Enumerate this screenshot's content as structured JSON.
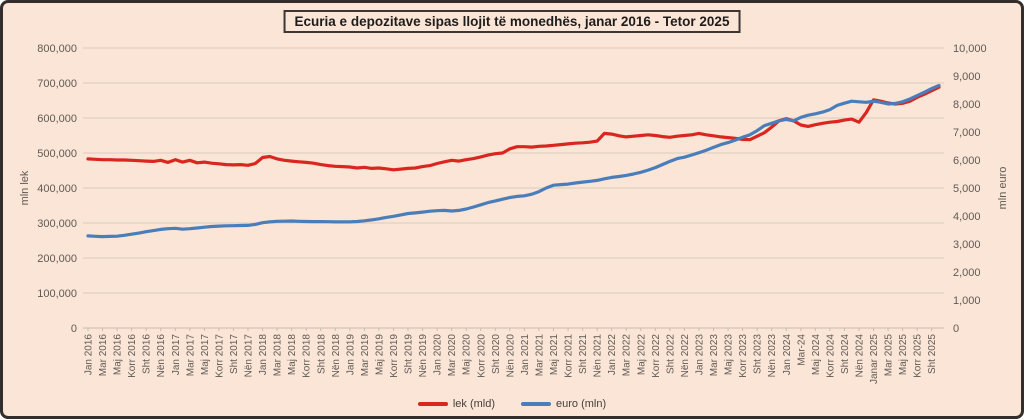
{
  "title": "Ecuria e depozitave sipas llojit të monedhës, janar 2016 - Tetor 2025",
  "left_axis": {
    "title": "mln lek",
    "tick_labels": [
      "0",
      "100,000",
      "200,000",
      "300,000",
      "400,000",
      "500,000",
      "600,000",
      "700,000",
      "800,000"
    ]
  },
  "right_axis": {
    "title": "mln euro",
    "tick_labels": [
      "0",
      "1,000",
      "2,000",
      "3,000",
      "4,000",
      "5,000",
      "6,000",
      "7,000",
      "8,000",
      "9,000",
      "10,000"
    ]
  },
  "legend": {
    "items": [
      {
        "label": "lek (mld)",
        "color": "#d9261f"
      },
      {
        "label": "euro (mln)",
        "color": "#4a7ebb"
      }
    ]
  },
  "colors": {
    "background": "#fbe5d6",
    "frame_border": "#332e2c",
    "gridline": "#d8ccc0",
    "axis_line": "#c9bcb0",
    "axis_text": "#5f5a55",
    "lek_line": "#d9261f",
    "euro_line": "#4a7ebb"
  },
  "chart_data": {
    "type": "line",
    "title": "Ecuria e depozitave sipas llojit të monedhës, janar 2016 - Tetor 2025",
    "x_tick_labels": [
      "Jan 2016",
      "Mar 2016",
      "Maj 2016",
      "Korr 2016",
      "Sht 2016",
      "Nën 2016",
      "Jan 2017",
      "Mar 2017",
      "Maj 2017",
      "Korr 2017",
      "Sht 2017",
      "Nën 2017",
      "Jan 2018",
      "Mar 2018",
      "Maj 2018",
      "Korr 2018",
      "Sht 2018",
      "Nën 2018",
      "Jan 2019",
      "Mar 2019",
      "Maj 2019",
      "Korr 2019",
      "Sht 2019",
      "Nën 2019",
      "Jan 2020",
      "Mar 2020",
      "Maj 2020",
      "Korr 2020",
      "Sht 2020",
      "Nën 2020",
      "Jan 2021",
      "Mar 2021",
      "Maj 2021",
      "Korr 2021",
      "Sht 2021",
      "Nën 2021",
      "Jan 2022",
      "Mar 2022",
      "Maj 2022",
      "Korr 2022",
      "Sht 2022",
      "Nën 2022",
      "Jan 2023",
      "Mar 2023",
      "Maj 2023",
      "Korr 2023",
      "Sht 2023",
      "Nën 2023",
      "Jan 2024",
      "Mar-24",
      "Maj 2024",
      "Korr 2024",
      "Sht 2024",
      "Nën 2024",
      "Janar 2025",
      "Mar 2025",
      "Maj 2025",
      "Korr 2025",
      "Sht 2025"
    ],
    "x_label_interval_months": 2,
    "left_ylim": [
      0,
      800000
    ],
    "right_ylim": [
      0,
      10000
    ],
    "legend_position": "bottom",
    "grid": true,
    "series": [
      {
        "name": "lek (mld)",
        "axis": "left",
        "unit": "mln lek",
        "color": "#d9261f",
        "values": [
          483000,
          482000,
          481000,
          481000,
          480000,
          480000,
          479000,
          478000,
          477000,
          476000,
          479000,
          473000,
          481000,
          474000,
          479000,
          472000,
          474000,
          471000,
          469000,
          467000,
          466000,
          467000,
          465000,
          470000,
          487000,
          490000,
          483000,
          479000,
          477000,
          475000,
          473000,
          471000,
          467000,
          464000,
          462000,
          461000,
          460000,
          457000,
          459000,
          456000,
          457000,
          455000,
          452000,
          454000,
          456000,
          457000,
          461000,
          464000,
          470000,
          475000,
          479000,
          477000,
          481000,
          484000,
          489000,
          494000,
          498000,
          500000,
          512000,
          518000,
          518000,
          517000,
          519000,
          520000,
          522000,
          524000,
          526000,
          528000,
          529000,
          531000,
          534000,
          556000,
          554000,
          549000,
          546000,
          548000,
          550000,
          552000,
          550000,
          547000,
          545000,
          548000,
          550000,
          552000,
          556000,
          552000,
          549000,
          546000,
          544000,
          542000,
          539000,
          538000,
          548000,
          558000,
          574000,
          592000,
          598000,
          592000,
          580000,
          576000,
          581000,
          585000,
          588000,
          590000,
          594000,
          597000,
          588000,
          616000,
          652000,
          648000,
          643000,
          640000,
          642000,
          648000,
          659000,
          668000,
          678000,
          688000
        ]
      },
      {
        "name": "euro (mln)",
        "axis": "right",
        "unit": "mln euro",
        "color": "#4a7ebb",
        "values": [
          3290,
          3275,
          3265,
          3270,
          3280,
          3310,
          3350,
          3390,
          3440,
          3480,
          3520,
          3545,
          3560,
          3530,
          3545,
          3570,
          3600,
          3625,
          3640,
          3650,
          3655,
          3660,
          3665,
          3700,
          3760,
          3790,
          3810,
          3815,
          3820,
          3810,
          3805,
          3800,
          3800,
          3795,
          3790,
          3790,
          3790,
          3805,
          3830,
          3860,
          3900,
          3950,
          3990,
          4040,
          4090,
          4110,
          4140,
          4170,
          4190,
          4200,
          4180,
          4200,
          4250,
          4320,
          4400,
          4480,
          4540,
          4600,
          4660,
          4700,
          4720,
          4780,
          4870,
          5000,
          5100,
          5120,
          5140,
          5180,
          5210,
          5240,
          5270,
          5330,
          5380,
          5410,
          5450,
          5500,
          5560,
          5640,
          5730,
          5840,
          5950,
          6050,
          6100,
          6180,
          6260,
          6350,
          6450,
          6550,
          6620,
          6710,
          6810,
          6900,
          7050,
          7230,
          7310,
          7400,
          7450,
          7400,
          7520,
          7600,
          7650,
          7710,
          7800,
          7950,
          8030,
          8100,
          8080,
          8060,
          8100,
          8060,
          8000,
          8020,
          8080,
          8180,
          8300,
          8420,
          8550,
          8660
        ]
      }
    ]
  }
}
